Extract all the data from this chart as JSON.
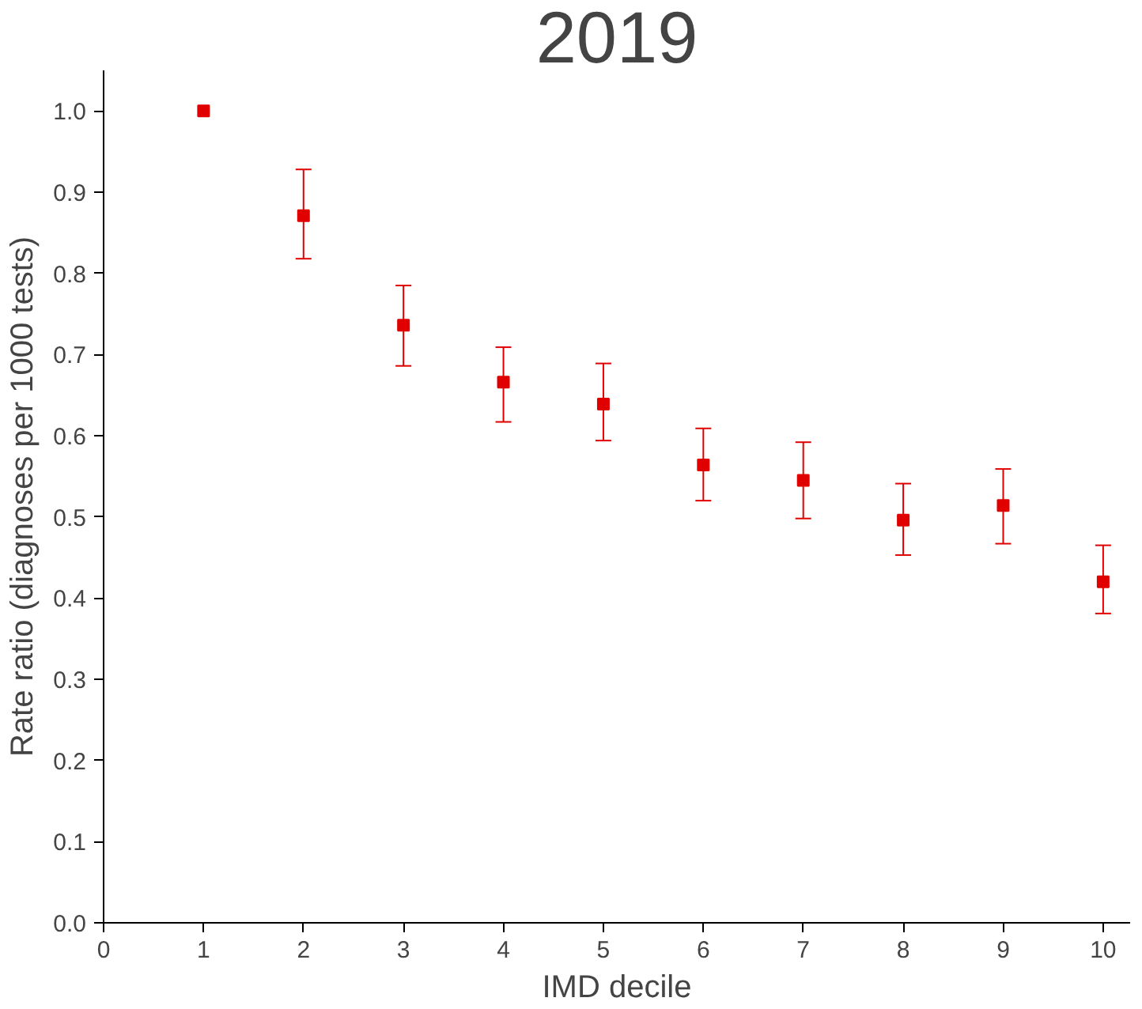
{
  "chart_data": {
    "type": "scatter",
    "title": "2019",
    "xlabel": "IMD decile",
    "ylabel": "Rate ratio (diagnoses per 1000 tests)",
    "x": [
      1,
      2,
      3,
      4,
      5,
      6,
      7,
      8,
      9,
      10
    ],
    "values": [
      1.0,
      0.871,
      0.736,
      0.666,
      0.639,
      0.564,
      0.545,
      0.496,
      0.514,
      0.42
    ],
    "errors": [
      null,
      [
        0.818,
        0.928
      ],
      [
        0.686,
        0.785
      ],
      [
        0.617,
        0.709
      ],
      [
        0.594,
        0.689
      ],
      [
        0.52,
        0.609
      ],
      [
        0.498,
        0.592
      ],
      [
        0.453,
        0.541
      ],
      [
        0.467,
        0.559
      ],
      [
        0.381,
        0.465
      ]
    ],
    "color": "#e00000",
    "marker": "square",
    "xlim": [
      0,
      10.27
    ],
    "ylim": [
      0,
      1.05
    ],
    "xticks": [
      0,
      1,
      2,
      3,
      4,
      5,
      6,
      7,
      8,
      9,
      10
    ],
    "yticks": [
      {
        "value": 0,
        "label": "0.0"
      },
      0.1,
      0.2,
      0.3,
      0.4,
      0.5,
      0.6,
      0.7,
      0.8,
      0.9,
      {
        "value": 1,
        "label": "1.0"
      }
    ],
    "grid": false
  }
}
